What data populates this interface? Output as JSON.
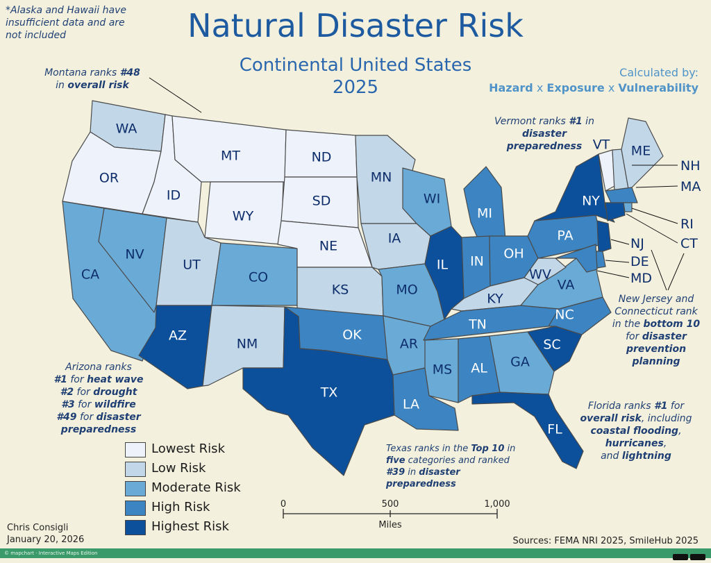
{
  "title": "Natural Disaster Risk",
  "subtitle_line1": "Continental United States",
  "subtitle_line2": "2025",
  "footnote": [
    "*Alaska and Hawaii have",
    "insufficient data and are",
    "not included"
  ],
  "calculated": {
    "heading": "Calculated by:",
    "hazard": "Hazard",
    "x1": " x ",
    "exposure": "Exposure",
    "x2": " x ",
    "vulnerability": "Vulnerability"
  },
  "annotations": {
    "montana": {
      "p1": "Montana ranks ",
      "b1": "#48",
      "p2": "in ",
      "b2": "overall risk"
    },
    "vermont": {
      "p1": "Vermont ranks ",
      "b1": "#1",
      "p2": " in",
      "b2": "disaster",
      "b3": "preparedness"
    },
    "arizona": {
      "l1": "Arizona ranks",
      "a2": "#1",
      "b2": " for ",
      "c2": "heat wave",
      "a3": "#2",
      "b3": " for ",
      "c3": "drought",
      "a4": "#3",
      "b4": " for ",
      "c4": "wildfire",
      "a5": "#49",
      "b5": " for ",
      "c5": "disaster preparedness"
    },
    "texas": {
      "p1": "Texas ranks in the ",
      "b1": "Top 10",
      "p1b": " in",
      "b2": "five",
      "p2": " categories and ranked",
      "b3": "#39",
      "p3": " in ",
      "b4": "disaster preparedness"
    },
    "florida": {
      "p1": "Florida ranks ",
      "b1": "#1",
      "p1b": " for",
      "b2": "overall risk",
      "p2": ", including",
      "b3": "coastal flooding",
      "p3": ",",
      "b4": "hurricanes",
      "p4": ",",
      "p5": "and ",
      "b5": "lightning"
    },
    "njct": {
      "l1": "New Jersey and",
      "l2": "Connecticut rank",
      "p3": "in the ",
      "b3": "bottom 10",
      "p4": "for ",
      "b4": "disaster",
      "b5": "prevention",
      "b6": "planning"
    }
  },
  "legend": [
    {
      "label": "Lowest Risk",
      "color": "#eef2fb"
    },
    {
      "label": "Low Risk",
      "color": "#c2d7e8"
    },
    {
      "label": "Moderate Risk",
      "color": "#6aaad6"
    },
    {
      "label": "High Risk",
      "color": "#3d85c2"
    },
    {
      "label": "Highest Risk",
      "color": "#0c4f9a"
    }
  ],
  "scale": {
    "t0": "0",
    "t1": "500",
    "t2": "1,000",
    "unit": "Miles"
  },
  "states": {
    "WA": "Low Risk",
    "OR": "Lowest Risk",
    "CA": "Moderate Risk",
    "ID": "Lowest Risk",
    "NV": "Moderate Risk",
    "MT": "Lowest Risk",
    "WY": "Lowest Risk",
    "UT": "Low Risk",
    "AZ": "Highest Risk",
    "CO": "Moderate Risk",
    "NM": "Low Risk",
    "ND": "Lowest Risk",
    "SD": "Lowest Risk",
    "NE": "Lowest Risk",
    "KS": "Low Risk",
    "OK": "High Risk",
    "TX": "Highest Risk",
    "MN": "Low Risk",
    "IA": "Low Risk",
    "MO": "Moderate Risk",
    "AR": "Moderate Risk",
    "LA": "High Risk",
    "WI": "Moderate Risk",
    "IL": "Highest Risk",
    "MI": "High Risk",
    "IN": "High Risk",
    "OH": "High Risk",
    "KY": "Low Risk",
    "TN": "High Risk",
    "MS": "Moderate Risk",
    "AL": "High Risk",
    "GA": "Moderate Risk",
    "FL": "Highest Risk",
    "SC": "Highest Risk",
    "NC": "High Risk",
    "VA": "Moderate Risk",
    "WV": "Low Risk",
    "PA": "High Risk",
    "NY": "Highest Risk",
    "VT": "Lowest Risk",
    "NH": "Low Risk",
    "ME": "Low Risk",
    "MA": "High Risk",
    "RI": "Moderate Risk",
    "CT": "Highest Risk",
    "NJ": "Highest Risk",
    "DE": "High Risk",
    "MD": "High Risk"
  },
  "author": "Chris Consigli",
  "date": "January 20, 2026",
  "sources": "Sources: FEMA NRI 2025, SmileHub 2025",
  "footer_text": "© mapchart · Interactive Maps Edition"
}
